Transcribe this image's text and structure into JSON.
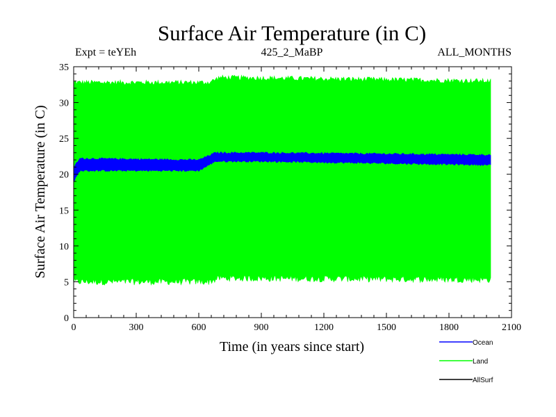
{
  "chart_data": {
    "type": "area",
    "title": "Surface Air Temperature (in C)",
    "subtitle_left": "Expt = teYEh",
    "subtitle_center": "425_2_MaBP",
    "subtitle_right": "ALL_MONTHS",
    "xlabel": "Time (in years since start)",
    "ylabel": "Surface Air Temperature (in C)",
    "xlim": [
      0,
      2100
    ],
    "ylim": [
      0,
      35
    ],
    "xticks": [
      0,
      300,
      600,
      900,
      1200,
      1500,
      1800,
      2100
    ],
    "yticks": [
      0,
      5,
      10,
      15,
      20,
      25,
      30,
      35
    ],
    "series": [
      {
        "name": "Land",
        "color": "#00ff00",
        "x_range": [
          0,
          2000
        ],
        "band_min": [
          [
            0,
            5.0
          ],
          [
            650,
            5.0
          ],
          [
            700,
            5.5
          ],
          [
            2000,
            5.3
          ]
        ],
        "band_max": [
          [
            0,
            32.8
          ],
          [
            650,
            32.8
          ],
          [
            700,
            33.5
          ],
          [
            2000,
            33.0
          ]
        ]
      },
      {
        "name": "Ocean",
        "color": "#0000ff",
        "x_range": [
          0,
          2000
        ],
        "band_min": [
          [
            0,
            19.0
          ],
          [
            30,
            20.5
          ],
          [
            600,
            20.5
          ],
          [
            680,
            21.8
          ],
          [
            900,
            21.8
          ],
          [
            2000,
            21.3
          ]
        ],
        "band_max": [
          [
            0,
            21.0
          ],
          [
            30,
            22.2
          ],
          [
            600,
            22.0
          ],
          [
            680,
            23.0
          ],
          [
            900,
            23.0
          ],
          [
            2000,
            22.7
          ]
        ]
      },
      {
        "name": "AllSurf",
        "color": "#000000"
      }
    ],
    "legend": [
      {
        "name": "Ocean",
        "color": "#0000ff"
      },
      {
        "name": "Land",
        "color": "#00ff00"
      },
      {
        "name": "AllSurf",
        "color": "#000000"
      }
    ],
    "legend_position": "bottom-right"
  }
}
